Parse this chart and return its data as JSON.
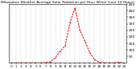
{
  "title": "Milwaukee Weather Average Solar Radiation per Hour W/m2 (Last 24 Hours)",
  "hours": [
    0,
    1,
    2,
    3,
    4,
    5,
    6,
    7,
    8,
    9,
    10,
    11,
    12,
    13,
    14,
    15,
    16,
    17,
    18,
    19,
    20,
    21,
    22,
    23
  ],
  "values": [
    0,
    0,
    0,
    0,
    0,
    0,
    0,
    1,
    8,
    40,
    90,
    130,
    310,
    420,
    250,
    170,
    80,
    25,
    3,
    0,
    0,
    0,
    4,
    0
  ],
  "line_color": "#dd0000",
  "bg_color": "#ffffff",
  "grid_color": "#bbbbbb",
  "ylim": [
    0,
    450
  ],
  "yticks": [
    50,
    100,
    150,
    200,
    250,
    300,
    350,
    400,
    450
  ],
  "ylabel_fontsize": 3.2,
  "xlabel_fontsize": 3.0,
  "title_fontsize": 3.2,
  "line_width": 0.7,
  "marker_size": 1.0
}
